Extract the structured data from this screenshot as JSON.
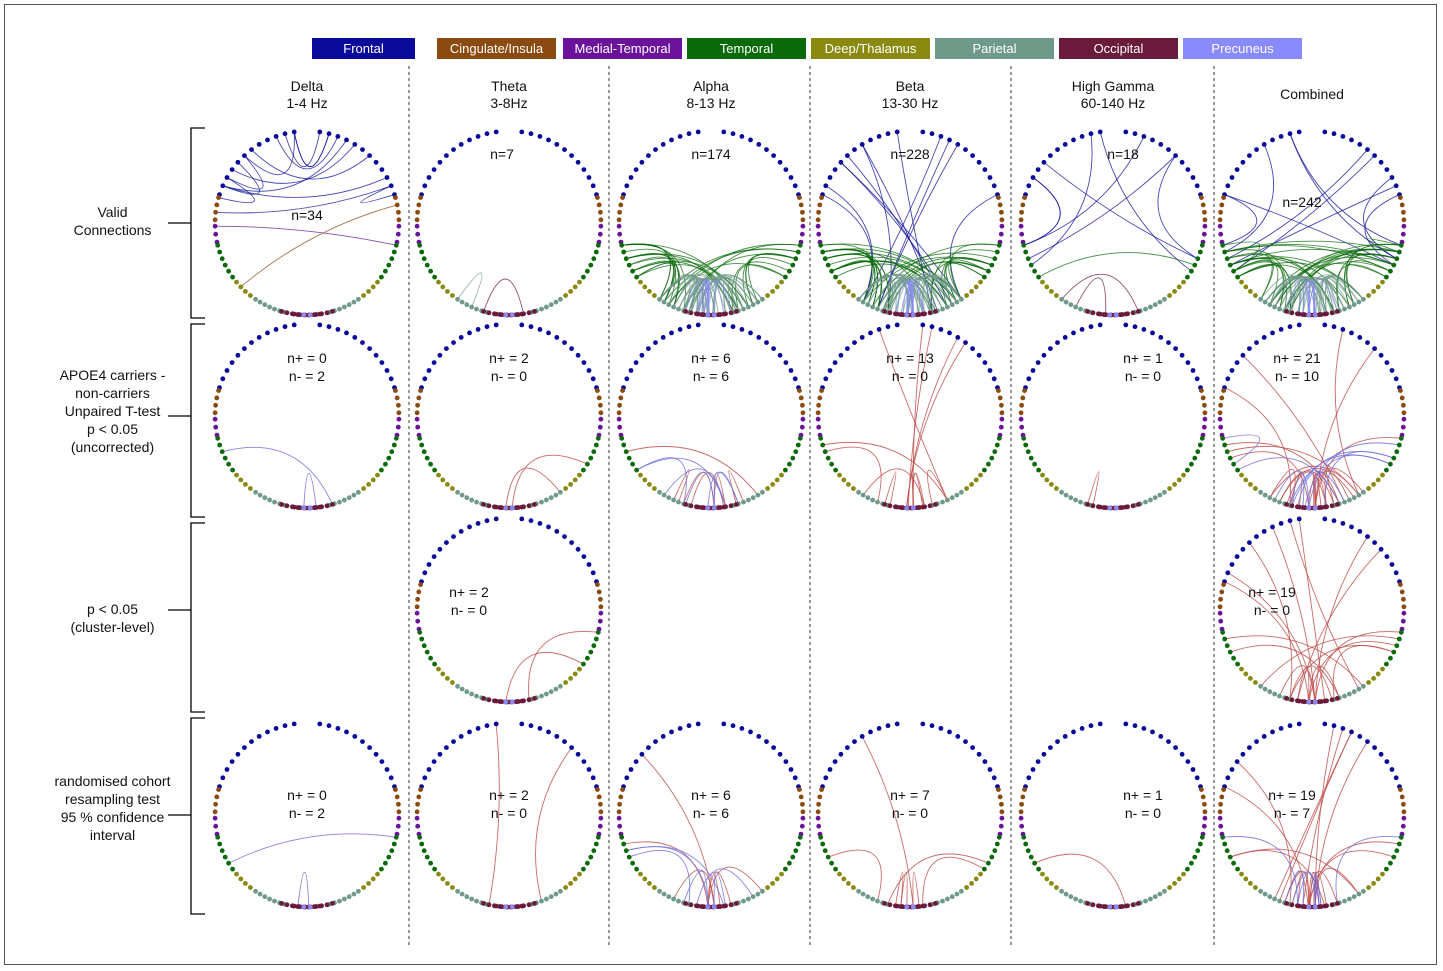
{
  "legend": [
    {
      "label": "Frontal",
      "color": "#0a0a9a"
    },
    {
      "label": "Cingulate/Insula",
      "color": "#8b4a10"
    },
    {
      "label": "Medial-Temporal",
      "color": "#6a129a"
    },
    {
      "label": "Temporal",
      "color": "#0a6a0a"
    },
    {
      "label": "Deep/Thalamus",
      "color": "#8a8a10"
    },
    {
      "label": "Parietal",
      "color": "#6f9a8a"
    },
    {
      "label": "Occipital",
      "color": "#6a1a3a"
    },
    {
      "label": "Precuneus",
      "color": "#8a8aff"
    }
  ],
  "columns": [
    {
      "line1": "Delta",
      "line2": "1-4 Hz"
    },
    {
      "line1": "Theta",
      "line2": "3-8Hz"
    },
    {
      "line1": "Alpha",
      "line2": "8-13 Hz"
    },
    {
      "line1": "Beta",
      "line2": "13-30 Hz"
    },
    {
      "line1": "High Gamma",
      "line2": "60-140 Hz"
    },
    {
      "line1": "Combined",
      "line2": ""
    }
  ],
  "rows": [
    {
      "label": "Valid\nConnections"
    },
    {
      "label": "APOE4 carriers -\nnon-carriers\nUnpaired T-test\np < 0.05\n(uncorrected)"
    },
    {
      "label": "p < 0.05\n(cluster-level)"
    },
    {
      "label": "randomised cohort\nresampling test\n95 % confidence\ninterval"
    }
  ],
  "panels": [
    {
      "row": 0,
      "col": 0,
      "stat": "n=34",
      "edges": {
        "Frontal-Frontal": 12,
        "Frontal-Cingulate/Insula": 2,
        "Medial-Temporal-Temporal": 1,
        "Cingulate/Insula-Deep/Thalamus": 1
      }
    },
    {
      "row": 0,
      "col": 1,
      "stat": "n=7",
      "edges": {
        "Occipital-Occipital": 1,
        "Parietal-Parietal": 1
      }
    },
    {
      "row": 0,
      "col": 2,
      "stat": "n=174",
      "edges": {
        "Temporal-Parietal": 30,
        "Parietal-Occipital": 40,
        "Precuneus-Occipital": 8
      }
    },
    {
      "row": 0,
      "col": 3,
      "stat": "n=228",
      "edges": {
        "Frontal-Parietal": 12,
        "Temporal-Parietal": 35,
        "Parietal-Occipital": 40,
        "Precuneus-Occipital": 10
      }
    },
    {
      "row": 0,
      "col": 4,
      "stat": "n=18",
      "edges": {
        "Frontal-Temporal": 8,
        "Temporal-Temporal": 1,
        "Occipital-Parietal": 2
      }
    },
    {
      "row": 0,
      "col": 5,
      "stat": "n=242",
      "edges": {
        "Frontal-Temporal": 10,
        "Temporal-Temporal": 6,
        "Temporal-Parietal": 30,
        "Parietal-Occipital": 35,
        "Precuneus-Occipital": 8
      }
    },
    {
      "row": 1,
      "col": 0,
      "stat": "n+ = 0\nn- = 2",
      "edges": {}
    },
    {
      "row": 1,
      "col": 1,
      "stat": "n+ = 2\nn- = 0",
      "edges": {}
    },
    {
      "row": 1,
      "col": 2,
      "stat": "n+ = 6\nn- = 6",
      "edges": {}
    },
    {
      "row": 1,
      "col": 3,
      "stat": "n+ = 13\nn- = 0",
      "edges": {}
    },
    {
      "row": 1,
      "col": 4,
      "stat": "n+ = 1\nn- = 0",
      "edges": {}
    },
    {
      "row": 1,
      "col": 5,
      "stat": "n+ = 21\nn- = 10",
      "edges": {}
    },
    {
      "row": 2,
      "col": 1,
      "stat": "n+ = 2\nn- = 0",
      "edges": {}
    },
    {
      "row": 2,
      "col": 5,
      "stat": "n+ = 19\nn- = 0",
      "edges": {}
    },
    {
      "row": 3,
      "col": 0,
      "stat": "n+ = 0\nn- = 2",
      "edges": {}
    },
    {
      "row": 3,
      "col": 1,
      "stat": "n+ = 2\nn- = 0",
      "edges": {}
    },
    {
      "row": 3,
      "col": 2,
      "stat": "n+ = 6\nn- = 6",
      "edges": {}
    },
    {
      "row": 3,
      "col": 3,
      "stat": "n+ = 7\nn- = 0",
      "edges": {}
    },
    {
      "row": 3,
      "col": 4,
      "stat": "n+ = 1\nn- = 0",
      "edges": {}
    },
    {
      "row": 3,
      "col": 5,
      "stat": "n+ = 19\nn- = 7",
      "edges": {}
    }
  ],
  "colors": {
    "positive_edge": "#c0504d",
    "negative_edge": "#7070e0",
    "divider": "#333333",
    "bracket": "#000000"
  }
}
